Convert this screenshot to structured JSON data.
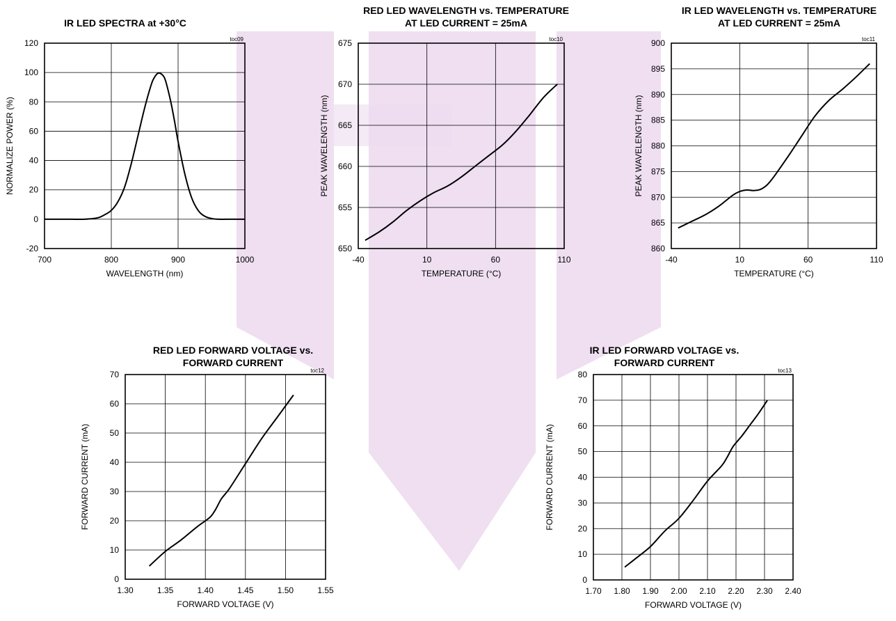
{
  "watermark": {
    "color": "#eddcf0"
  },
  "chart_data": [
    {
      "type": "line",
      "title": [
        "IR LED SPECTRA at +30°C"
      ],
      "tag": "toc09",
      "xlabel": "WAVELENGTH (nm)",
      "ylabel": "NORMALIZE POWER (%)",
      "xlim": [
        700,
        1000
      ],
      "ylim": [
        -20,
        120
      ],
      "xticks": [
        700,
        800,
        900,
        1000
      ],
      "xtick_labels": [
        "700",
        "800",
        "900",
        "1000"
      ],
      "yticks": [
        -20,
        0,
        20,
        40,
        60,
        80,
        100,
        120
      ],
      "ytick_labels": [
        "-20",
        "0",
        "20",
        "40",
        "60",
        "80",
        "100",
        "120"
      ],
      "series": [
        {
          "x": [
            700,
            720,
            740,
            760,
            780,
            790,
            800,
            810,
            820,
            830,
            840,
            850,
            860,
            865,
            870,
            875,
            880,
            885,
            890,
            895,
            900,
            910,
            920,
            930,
            940,
            950,
            960,
            980,
            1000
          ],
          "y": [
            0,
            0,
            0,
            0,
            1,
            3,
            6,
            12,
            22,
            38,
            57,
            76,
            92,
            97,
            99.5,
            99,
            96,
            88,
            78,
            66,
            53,
            31,
            15,
            6,
            2,
            0.5,
            0,
            0,
            0
          ]
        }
      ]
    },
    {
      "type": "line",
      "title": [
        "RED LED WAVELENGTH vs. TEMPERATURE",
        "AT LED CURRENT = 25mA"
      ],
      "tag": "toc10",
      "xlabel": "TEMPERATURE (°C)",
      "ylabel": "PEAK WAVELENGTH (nm)",
      "xlim": [
        -40,
        110
      ],
      "ylim": [
        650,
        675
      ],
      "xticks": [
        -40,
        10,
        60,
        110
      ],
      "xtick_labels": [
        "-40",
        "10",
        "60",
        "110"
      ],
      "yticks": [
        650,
        655,
        660,
        665,
        670,
        675
      ],
      "ytick_labels": [
        "650",
        "655",
        "660",
        "665",
        "670",
        "675"
      ],
      "series": [
        {
          "x": [
            -35,
            -25,
            -15,
            -5,
            5,
            15,
            25,
            35,
            45,
            55,
            65,
            75,
            85,
            95,
            105
          ],
          "y": [
            651,
            652,
            653.2,
            654.6,
            655.8,
            656.8,
            657.6,
            658.7,
            660,
            661.3,
            662.6,
            664.3,
            666.3,
            668.4,
            670
          ]
        }
      ]
    },
    {
      "type": "line",
      "title": [
        "IR LED WAVELENGTH vs. TEMPERATURE",
        "AT LED CURRENT = 25mA"
      ],
      "tag": "toc11",
      "xlabel": "TEMPERATURE (°C)",
      "ylabel": "PEAK WAVELENGTH (nm)",
      "xlim": [
        -40,
        110
      ],
      "ylim": [
        860,
        900
      ],
      "xticks": [
        -40,
        10,
        60,
        110
      ],
      "xtick_labels": [
        "-40",
        "10",
        "60",
        "110"
      ],
      "yticks": [
        860,
        865,
        870,
        875,
        880,
        885,
        890,
        895,
        900
      ],
      "ytick_labels": [
        "860",
        "865",
        "870",
        "875",
        "880",
        "885",
        "890",
        "895",
        "900"
      ],
      "series": [
        {
          "x": [
            -35,
            -25,
            -15,
            -5,
            5,
            10,
            15,
            20,
            25,
            30,
            35,
            45,
            55,
            65,
            75,
            85,
            95,
            105
          ],
          "y": [
            864,
            865.3,
            866.6,
            868.3,
            870.4,
            871.1,
            871.4,
            871.3,
            871.5,
            872.4,
            874,
            877.8,
            881.8,
            885.8,
            888.8,
            891,
            893.4,
            896
          ]
        }
      ]
    },
    {
      "type": "line",
      "title": [
        "RED LED FORWARD VOLTAGE vs.",
        "FORWARD CURRENT"
      ],
      "tag": "toc12",
      "xlabel": "FORWARD VOLTAGE (V)",
      "ylabel": "FORWARD CURRENT (mA)",
      "xlim": [
        1.3,
        1.55
      ],
      "ylim": [
        0,
        70
      ],
      "xticks": [
        1.3,
        1.35,
        1.4,
        1.45,
        1.5,
        1.55
      ],
      "xtick_labels": [
        "1.30",
        "1.35",
        "1.40",
        "1.45",
        "1.50",
        "1.55"
      ],
      "yticks": [
        0,
        10,
        20,
        30,
        40,
        50,
        60,
        70
      ],
      "ytick_labels": [
        "0",
        "10",
        "20",
        "30",
        "40",
        "50",
        "60",
        "70"
      ],
      "series": [
        {
          "x": [
            1.33,
            1.35,
            1.37,
            1.39,
            1.405,
            1.412,
            1.42,
            1.43,
            1.45,
            1.47,
            1.49,
            1.51
          ],
          "y": [
            4.5,
            9.5,
            13.5,
            18,
            21,
            23.5,
            27.5,
            31,
            39.5,
            48,
            55.5,
            63
          ]
        }
      ]
    },
    {
      "type": "line",
      "title": [
        "IR LED FORWARD VOLTAGE vs.",
        "FORWARD CURRENT"
      ],
      "tag": "toc13",
      "xlabel": "FORWARD VOLTAGE (V)",
      "ylabel": "FORWARD CURRENT (mA)",
      "xlim": [
        1.7,
        2.4
      ],
      "ylim": [
        0,
        80
      ],
      "xticks": [
        1.7,
        1.8,
        1.9,
        2.0,
        2.1,
        2.2,
        2.3,
        2.4
      ],
      "xtick_labels": [
        "1.70",
        "1.80",
        "1.90",
        "2.00",
        "2.10",
        "2.20",
        "2.30",
        "2.40"
      ],
      "yticks": [
        0,
        10,
        20,
        30,
        40,
        50,
        60,
        70,
        80
      ],
      "ytick_labels": [
        "0",
        "10",
        "20",
        "30",
        "40",
        "50",
        "60",
        "70",
        "80"
      ],
      "series": [
        {
          "x": [
            1.81,
            1.85,
            1.9,
            1.95,
            2.0,
            2.05,
            2.1,
            2.15,
            2.17,
            2.19,
            2.22,
            2.25,
            2.28,
            2.31
          ],
          "y": [
            5,
            8.5,
            13,
            19,
            24,
            31,
            38.5,
            44.5,
            48,
            52,
            56,
            60.5,
            65,
            70
          ]
        }
      ]
    }
  ]
}
